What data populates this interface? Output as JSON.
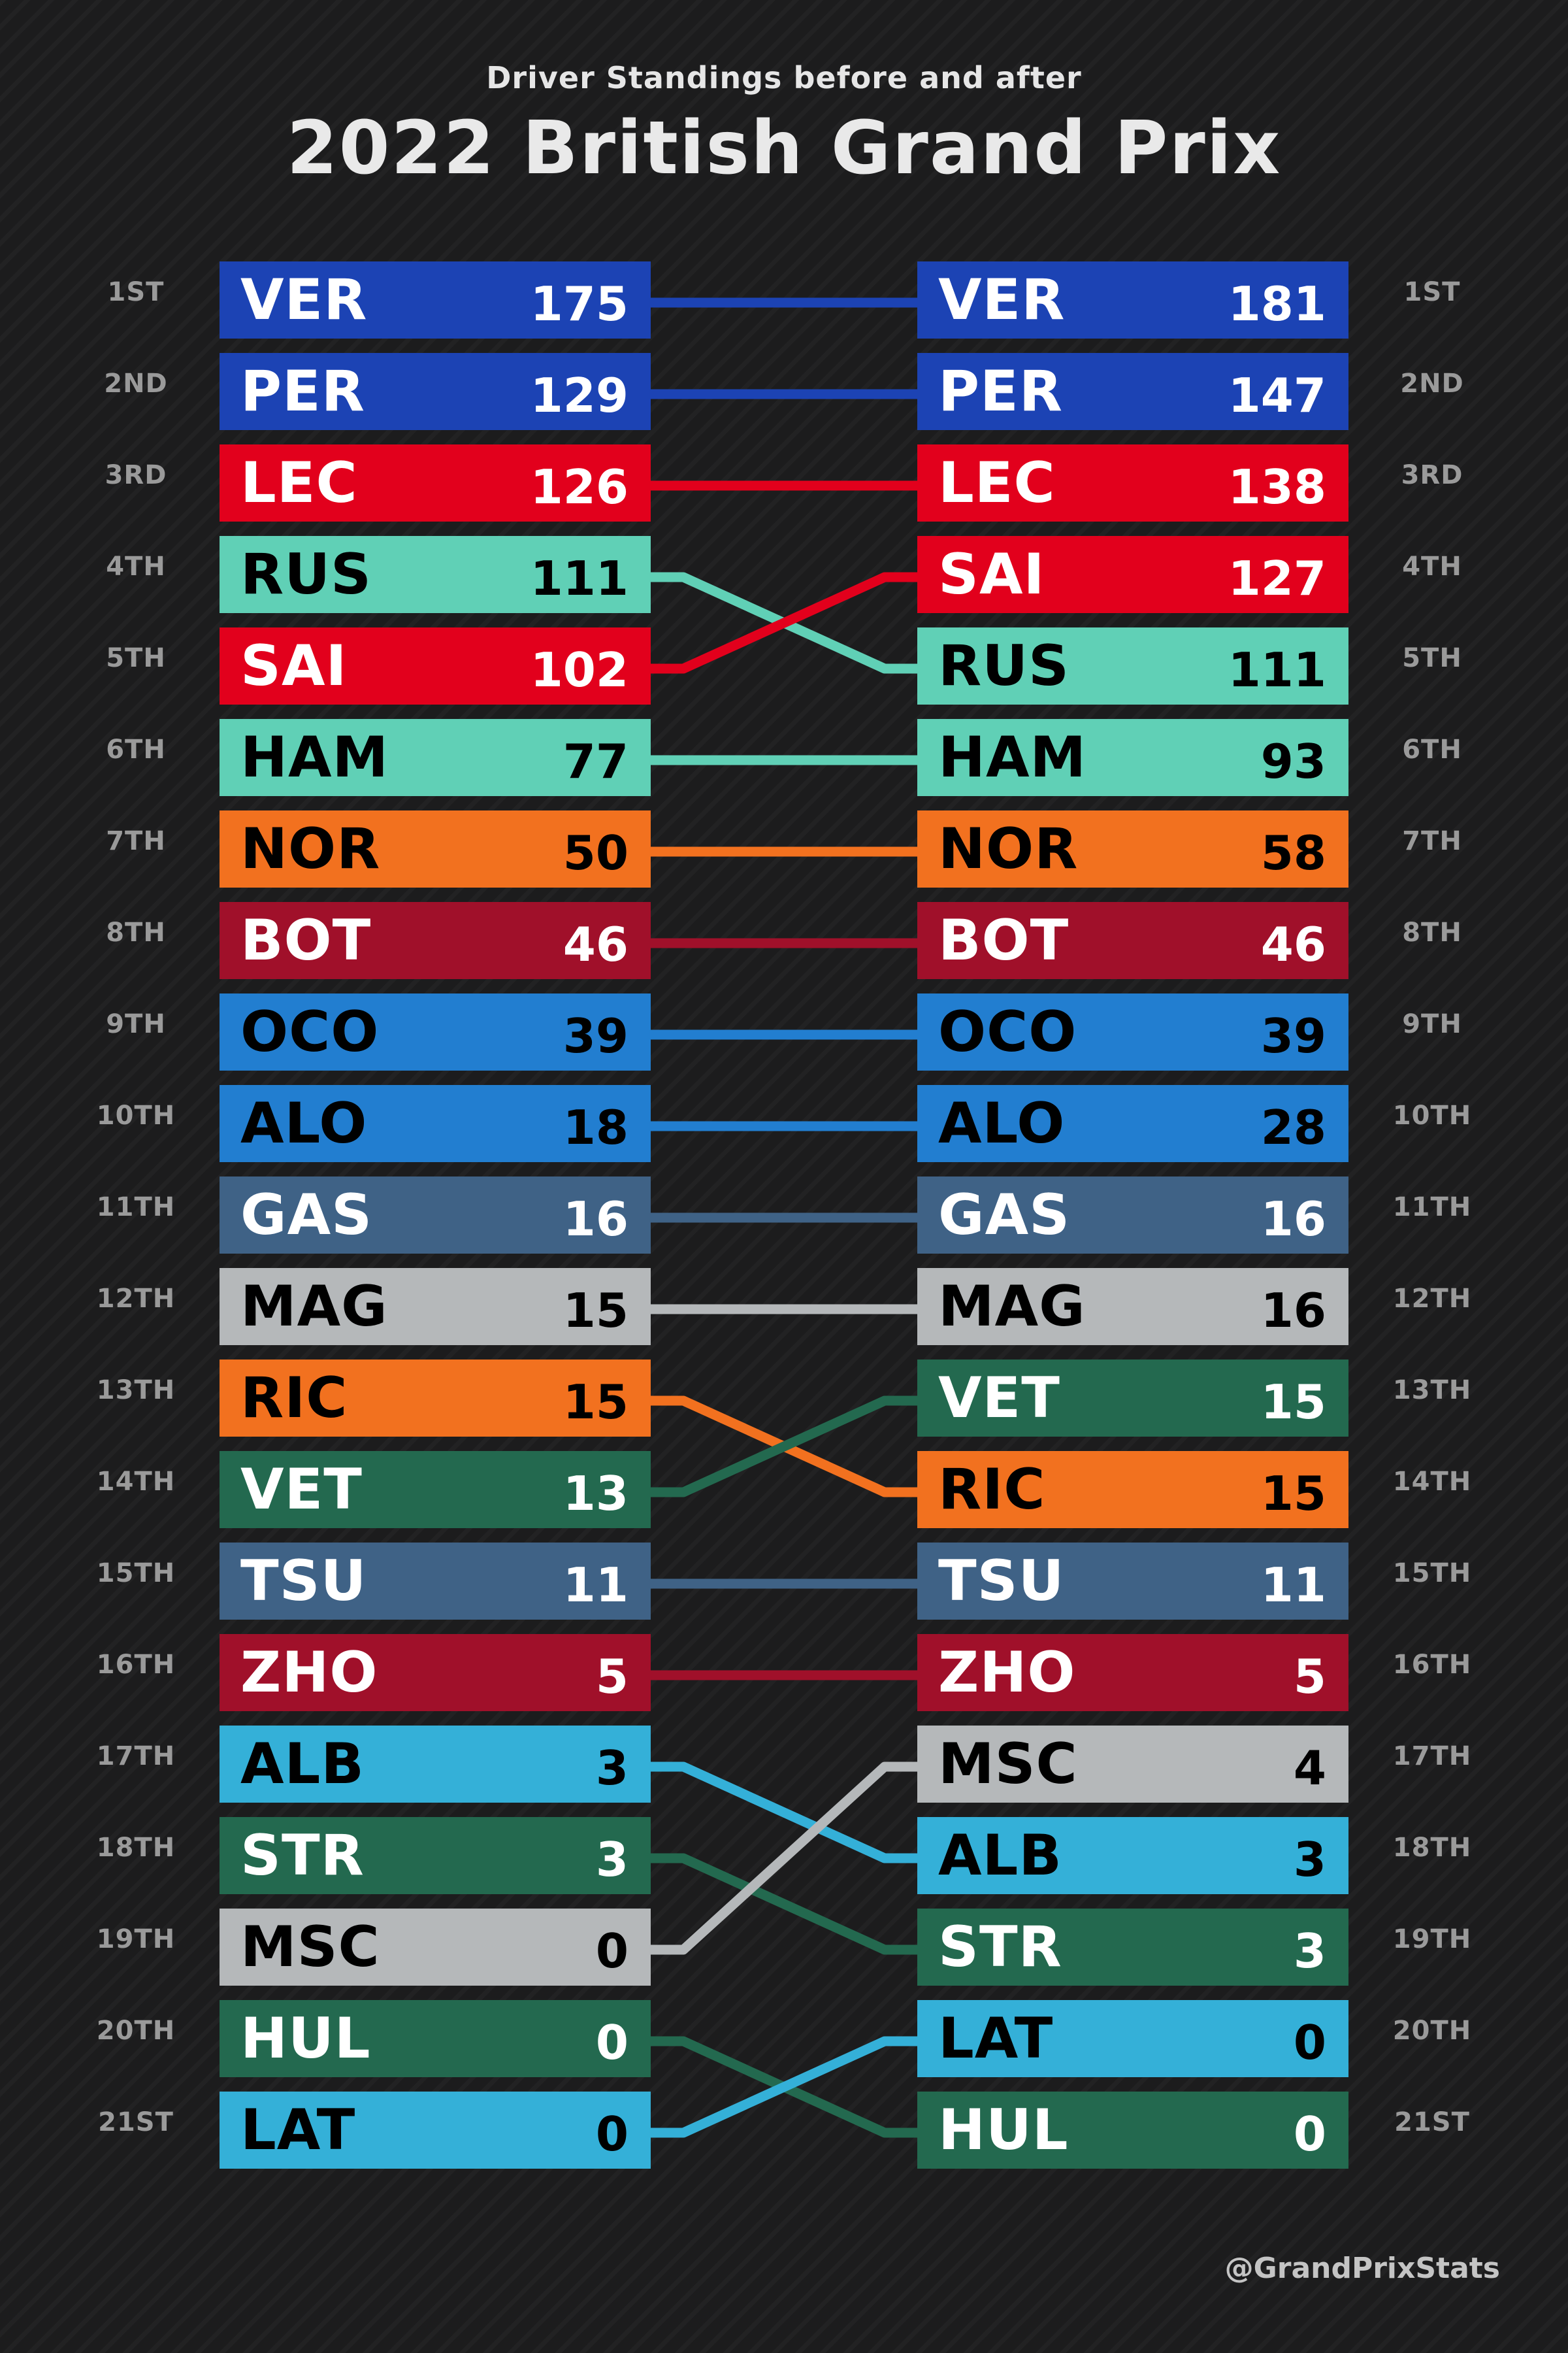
{
  "subtitle": "Driver Standings before and after",
  "title": "2022 British Grand Prix",
  "credit": "@GrandPrixStats",
  "positions": [
    "1ST",
    "2ND",
    "3RD",
    "4TH",
    "5TH",
    "6TH",
    "7TH",
    "8TH",
    "9TH",
    "10TH",
    "11TH",
    "12TH",
    "13TH",
    "14TH",
    "15TH",
    "16TH",
    "17TH",
    "18TH",
    "19TH",
    "20TH",
    "21ST"
  ],
  "chart_data": {
    "type": "table",
    "columns": [
      "before",
      "after"
    ],
    "before": [
      {
        "driver": "VER",
        "points": 175,
        "color": "#1c43b4",
        "text": "#ffffff"
      },
      {
        "driver": "PER",
        "points": 129,
        "color": "#1c43b4",
        "text": "#ffffff"
      },
      {
        "driver": "LEC",
        "points": 126,
        "color": "#e2001c",
        "text": "#ffffff"
      },
      {
        "driver": "RUS",
        "points": 111,
        "color": "#60d0b6",
        "text": "#000000"
      },
      {
        "driver": "SAI",
        "points": 102,
        "color": "#e2001c",
        "text": "#ffffff"
      },
      {
        "driver": "HAM",
        "points": 77,
        "color": "#60d0b6",
        "text": "#000000"
      },
      {
        "driver": "NOR",
        "points": 50,
        "color": "#f2711f",
        "text": "#000000"
      },
      {
        "driver": "BOT",
        "points": 46,
        "color": "#a0102a",
        "text": "#ffffff"
      },
      {
        "driver": "OCO",
        "points": 39,
        "color": "#227ed0",
        "text": "#000000"
      },
      {
        "driver": "ALO",
        "points": 18,
        "color": "#227ed0",
        "text": "#000000"
      },
      {
        "driver": "GAS",
        "points": 16,
        "color": "#3f6286",
        "text": "#ffffff"
      },
      {
        "driver": "MAG",
        "points": 15,
        "color": "#b5b8ba",
        "text": "#000000"
      },
      {
        "driver": "RIC",
        "points": 15,
        "color": "#f2711f",
        "text": "#000000"
      },
      {
        "driver": "VET",
        "points": 13,
        "color": "#23694f",
        "text": "#ffffff"
      },
      {
        "driver": "TSU",
        "points": 11,
        "color": "#3f6286",
        "text": "#ffffff"
      },
      {
        "driver": "ZHO",
        "points": 5,
        "color": "#a0102a",
        "text": "#ffffff"
      },
      {
        "driver": "ALB",
        "points": 3,
        "color": "#34b0d8",
        "text": "#000000"
      },
      {
        "driver": "STR",
        "points": 3,
        "color": "#23694f",
        "text": "#ffffff"
      },
      {
        "driver": "MSC",
        "points": 0,
        "color": "#b5b8ba",
        "text": "#000000"
      },
      {
        "driver": "HUL",
        "points": 0,
        "color": "#23694f",
        "text": "#ffffff"
      },
      {
        "driver": "LAT",
        "points": 0,
        "color": "#34b0d8",
        "text": "#000000"
      }
    ],
    "after": [
      {
        "driver": "VER",
        "points": 181,
        "color": "#1c43b4",
        "text": "#ffffff"
      },
      {
        "driver": "PER",
        "points": 147,
        "color": "#1c43b4",
        "text": "#ffffff"
      },
      {
        "driver": "LEC",
        "points": 138,
        "color": "#e2001c",
        "text": "#ffffff"
      },
      {
        "driver": "SAI",
        "points": 127,
        "color": "#e2001c",
        "text": "#ffffff"
      },
      {
        "driver": "RUS",
        "points": 111,
        "color": "#60d0b6",
        "text": "#000000"
      },
      {
        "driver": "HAM",
        "points": 93,
        "color": "#60d0b6",
        "text": "#000000"
      },
      {
        "driver": "NOR",
        "points": 58,
        "color": "#f2711f",
        "text": "#000000"
      },
      {
        "driver": "BOT",
        "points": 46,
        "color": "#a0102a",
        "text": "#ffffff"
      },
      {
        "driver": "OCO",
        "points": 39,
        "color": "#227ed0",
        "text": "#000000"
      },
      {
        "driver": "ALO",
        "points": 28,
        "color": "#227ed0",
        "text": "#000000"
      },
      {
        "driver": "GAS",
        "points": 16,
        "color": "#3f6286",
        "text": "#ffffff"
      },
      {
        "driver": "MAG",
        "points": 16,
        "color": "#b5b8ba",
        "text": "#000000"
      },
      {
        "driver": "VET",
        "points": 15,
        "color": "#23694f",
        "text": "#ffffff"
      },
      {
        "driver": "RIC",
        "points": 15,
        "color": "#f2711f",
        "text": "#000000"
      },
      {
        "driver": "TSU",
        "points": 11,
        "color": "#3f6286",
        "text": "#ffffff"
      },
      {
        "driver": "ZHO",
        "points": 5,
        "color": "#a0102a",
        "text": "#ffffff"
      },
      {
        "driver": "MSC",
        "points": 4,
        "color": "#b5b8ba",
        "text": "#000000"
      },
      {
        "driver": "ALB",
        "points": 3,
        "color": "#34b0d8",
        "text": "#000000"
      },
      {
        "driver": "STR",
        "points": 3,
        "color": "#23694f",
        "text": "#ffffff"
      },
      {
        "driver": "LAT",
        "points": 0,
        "color": "#34b0d8",
        "text": "#000000"
      },
      {
        "driver": "HUL",
        "points": 0,
        "color": "#23694f",
        "text": "#ffffff"
      }
    ]
  }
}
